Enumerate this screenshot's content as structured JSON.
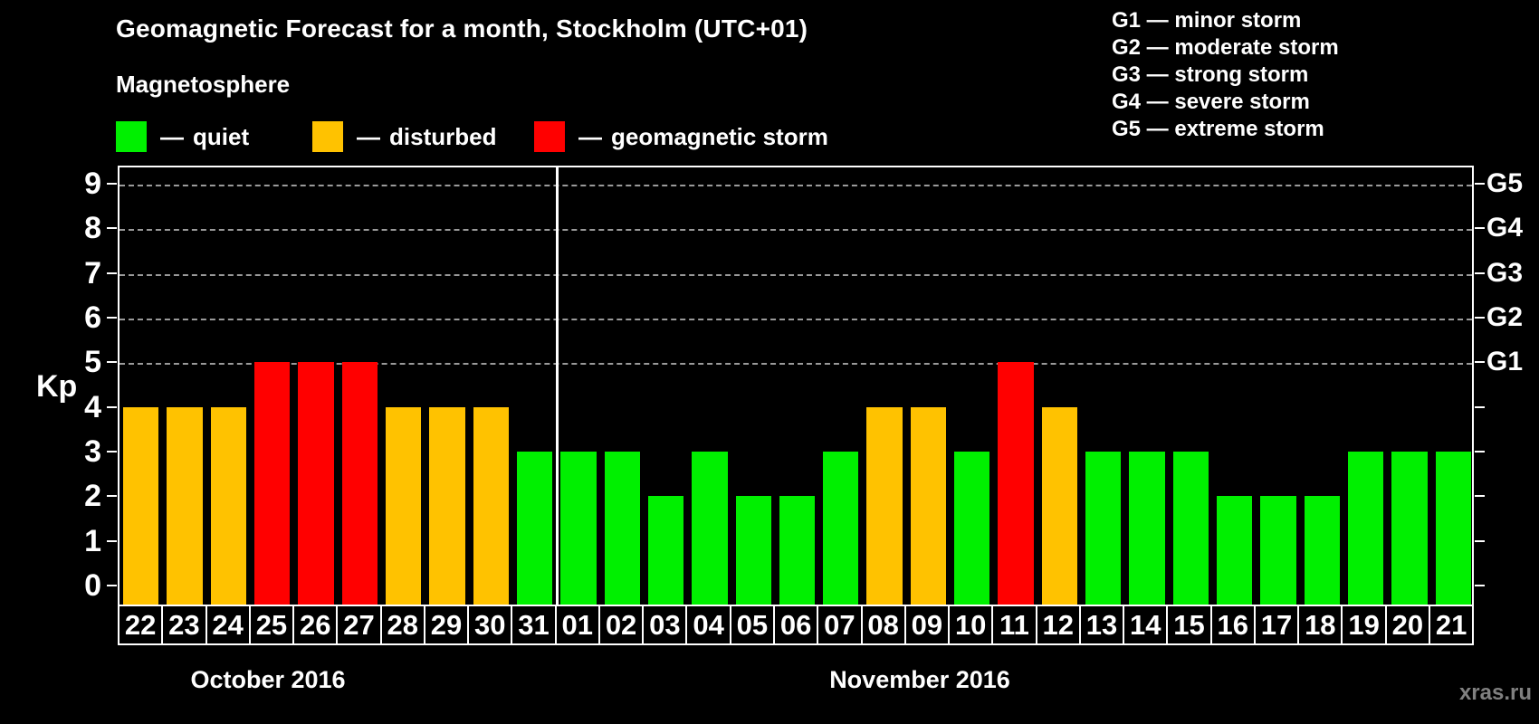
{
  "header": {
    "title": "Geomagnetic Forecast for a month, Stockholm (UTC+01)",
    "subtitle": "Magnetosphere"
  },
  "legend": {
    "dash": "—",
    "items": [
      {
        "label": "quiet",
        "status": "quiet",
        "color": "#00f000"
      },
      {
        "label": "disturbed",
        "status": "disturbed",
        "color": "#ffc200"
      },
      {
        "label": "geomagnetic storm",
        "status": "storm",
        "color": "#ff0000"
      }
    ]
  },
  "g_scale_legend": [
    "G1 — minor storm",
    "G2 — moderate storm",
    "G3 — strong storm",
    "G4 — severe storm",
    "G5 — extreme storm"
  ],
  "chart_data": {
    "type": "bar",
    "title": "Geomagnetic Forecast for a month, Stockholm (UTC+01)",
    "ylabel": "Kp",
    "ylim": [
      0,
      9
    ],
    "y_ticks": [
      0,
      1,
      2,
      3,
      4,
      5,
      6,
      7,
      8,
      9
    ],
    "gridlines": [
      5,
      6,
      7,
      8,
      9
    ],
    "grid_style": "dashed",
    "right_axis_labels": [
      {
        "value": 5,
        "label": "G1"
      },
      {
        "value": 6,
        "label": "G2"
      },
      {
        "value": 7,
        "label": "G3"
      },
      {
        "value": 8,
        "label": "G4"
      },
      {
        "value": 9,
        "label": "G5"
      }
    ],
    "months": [
      {
        "name": "October 2016",
        "days": 10
      },
      {
        "name": "November 2016",
        "days": 21
      }
    ],
    "categories": [
      "22",
      "23",
      "24",
      "25",
      "26",
      "27",
      "28",
      "29",
      "30",
      "31",
      "01",
      "02",
      "03",
      "04",
      "05",
      "06",
      "07",
      "08",
      "09",
      "10",
      "11",
      "12",
      "13",
      "14",
      "15",
      "16",
      "17",
      "18",
      "19",
      "20",
      "21"
    ],
    "values": [
      4,
      4,
      4,
      5,
      5,
      5,
      4,
      4,
      4,
      3,
      3,
      3,
      2,
      3,
      2,
      2,
      3,
      4,
      4,
      3,
      5,
      4,
      3,
      3,
      3,
      2,
      2,
      2,
      3,
      3,
      3
    ],
    "statuses": [
      "disturbed",
      "disturbed",
      "disturbed",
      "storm",
      "storm",
      "storm",
      "disturbed",
      "disturbed",
      "disturbed",
      "quiet",
      "quiet",
      "quiet",
      "quiet",
      "quiet",
      "quiet",
      "quiet",
      "quiet",
      "disturbed",
      "disturbed",
      "quiet",
      "storm",
      "disturbed",
      "quiet",
      "quiet",
      "quiet",
      "quiet",
      "quiet",
      "quiet",
      "quiet",
      "quiet",
      "quiet"
    ],
    "colors": {
      "quiet": "#00f000",
      "disturbed": "#ffc200",
      "storm": "#ff0000"
    }
  },
  "watermark": "xras.ru"
}
